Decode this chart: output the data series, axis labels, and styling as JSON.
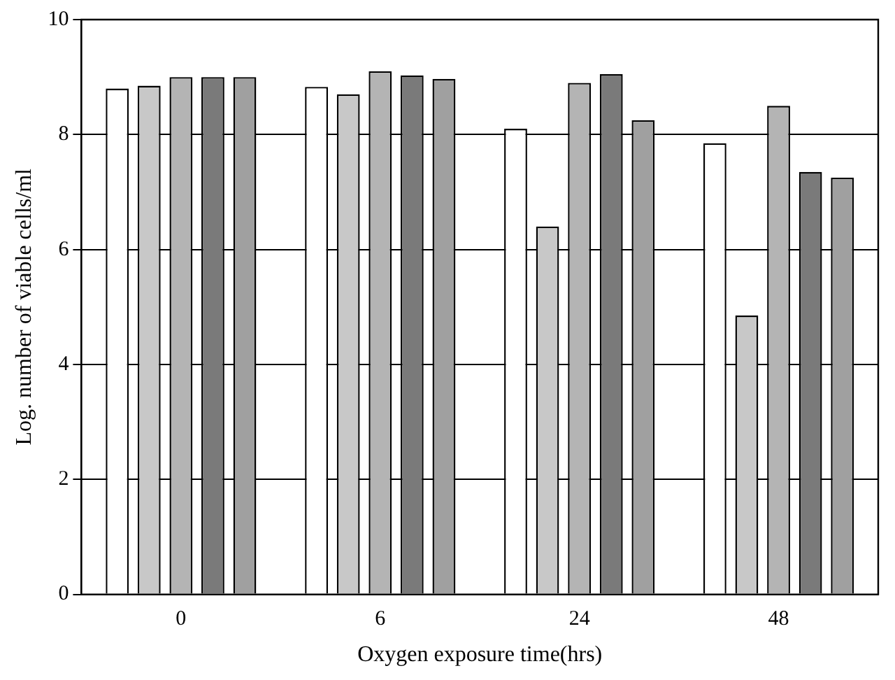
{
  "chart_data": {
    "type": "bar",
    "xlabel": "Oxygen exposure time(hrs)",
    "ylabel": "Log. number of viable cells/ml",
    "categories": [
      "0",
      "6",
      "24",
      "48"
    ],
    "series": [
      {
        "color": "#ffffff",
        "values": [
          8.8,
          8.83,
          8.1,
          7.85
        ]
      },
      {
        "color": "#c8c8c8",
        "values": [
          8.85,
          8.7,
          6.4,
          4.85
        ]
      },
      {
        "color": "#b4b4b4",
        "values": [
          9.0,
          9.1,
          8.9,
          8.5
        ]
      },
      {
        "color": "#7a7a7a",
        "values": [
          9.0,
          9.03,
          9.05,
          7.35
        ]
      },
      {
        "color": "#a0a0a0",
        "values": [
          9.0,
          8.97,
          8.25,
          7.25
        ]
      }
    ],
    "ylim": [
      0,
      10
    ],
    "yticks": [
      0,
      2,
      4,
      6,
      8,
      10
    ],
    "grid": "y",
    "legend": false
  }
}
